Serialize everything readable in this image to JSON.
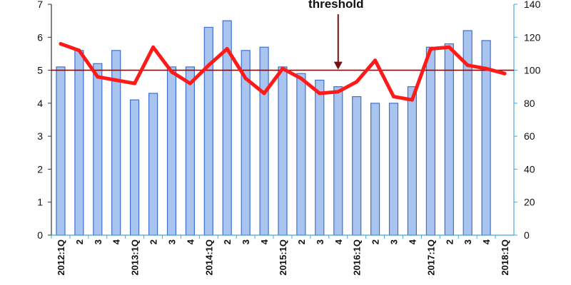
{
  "chart_data": {
    "type": "bar",
    "categories": [
      "2012:1Q",
      "2",
      "3",
      "4",
      "2013:1Q",
      "2",
      "3",
      "4",
      "2014:1Q",
      "2",
      "3",
      "4",
      "2015:1Q",
      "2",
      "3",
      "4",
      "2016:1Q",
      "2",
      "3",
      "4",
      "2017:1Q",
      "2",
      "3",
      "4",
      "2018:1Q"
    ],
    "series": [
      {
        "type": "bar",
        "axis": "left",
        "values": [
          5.1,
          5.6,
          5.2,
          5.6,
          4.1,
          4.3,
          5.1,
          5.1,
          6.3,
          6.5,
          5.6,
          5.7,
          5.1,
          4.9,
          4.7,
          4.5,
          4.2,
          4.0,
          4.0,
          4.5,
          5.7,
          5.8,
          6.2,
          5.9,
          null
        ]
      },
      {
        "type": "line",
        "axis": "right",
        "values": [
          116,
          112,
          96,
          94,
          92,
          114,
          99,
          92,
          103,
          113,
          95,
          86,
          101,
          95,
          86,
          87,
          93,
          106,
          84,
          82,
          113,
          114,
          103,
          101,
          98
        ]
      }
    ],
    "threshold": {
      "label": "threshold",
      "value": 100,
      "axis": "right"
    },
    "y_left": {
      "min": 0,
      "max": 7,
      "ticks": [
        "0",
        "1",
        "2",
        "3",
        "4",
        "5",
        "6",
        "7"
      ]
    },
    "y_right": {
      "min": 0,
      "max": 140,
      "ticks": [
        "0",
        "20",
        "40",
        "60",
        "80",
        "100",
        "120",
        "140"
      ]
    },
    "colors": {
      "bar_fill": "#a9c4ef",
      "bar_stroke": "#3f6fcf",
      "line": "#ff1a1a",
      "threshold": "#7a1010",
      "axis_right": "#49a8d8",
      "axis_left": "#333333"
    },
    "grid": false
  }
}
